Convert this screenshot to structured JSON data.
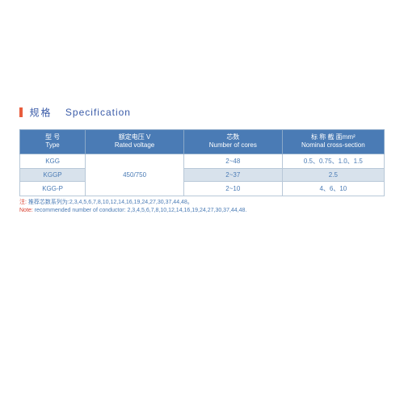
{
  "heading": {
    "cn": "规格",
    "en": "Specification"
  },
  "table": {
    "headers": {
      "type_cn": "型 号",
      "type_en": "Type",
      "voltage_cn": "额定电压  V",
      "voltage_en": "Rated voltage",
      "cores_cn": "芯数",
      "cores_en": "Number of cores",
      "cross_cn": "标 称 截 面mm²",
      "cross_en": "Nominal cross-section"
    },
    "rows": [
      {
        "type": "KGG",
        "cores": "2~48",
        "cross": "0.5、0.75、1.0、1.5"
      },
      {
        "type": "KGGP",
        "cores": "2~37",
        "cross": "2.5"
      },
      {
        "type": "KGG-P",
        "cores": "2~10",
        "cross": "4、6、10"
      }
    ],
    "voltage": "450/750"
  },
  "note": {
    "label_cn": "注:",
    "text_cn": "推荐芯数系列为:2,3,4,5,6,7,8,10,12,14,16,19,24,27,30,37,44,48。",
    "label_en": "Note:",
    "text_en": " recommended number of conductor: 2,3,4,5,6,7,8,10,12,14,16,19,24,27,30,37,44,48."
  }
}
